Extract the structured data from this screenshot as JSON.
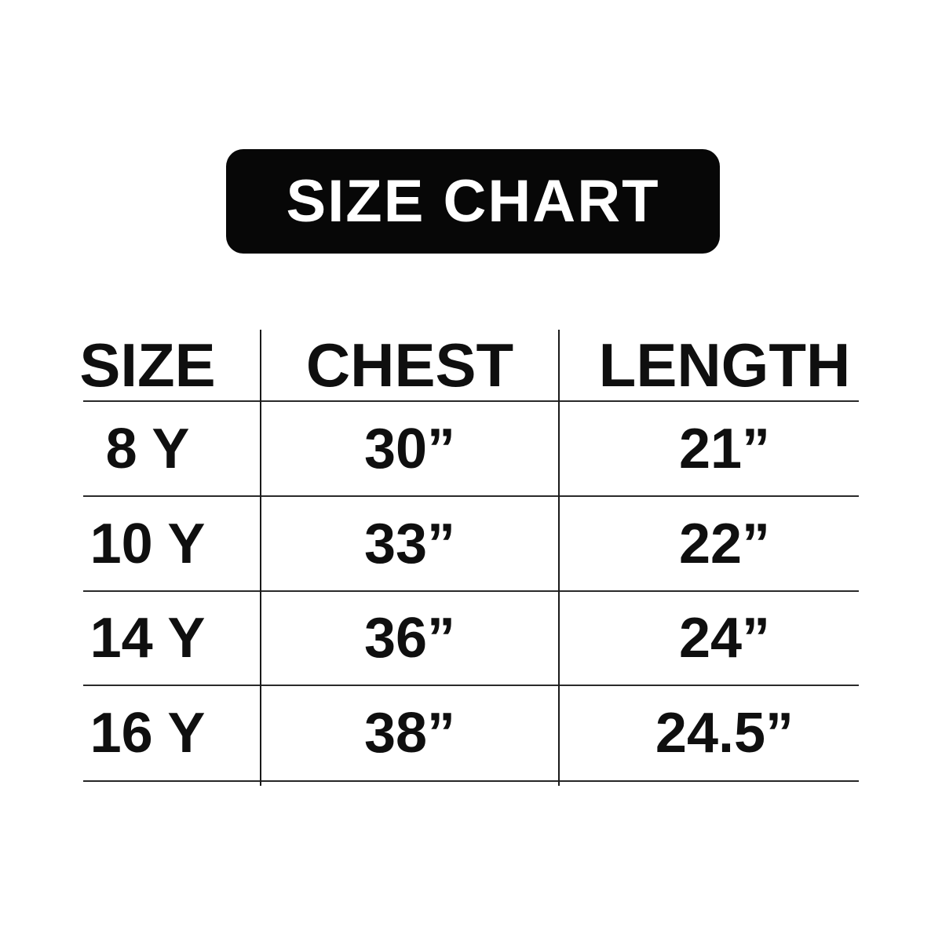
{
  "title": "SIZE CHART",
  "chart_data": {
    "type": "table",
    "title": "SIZE CHART",
    "columns": [
      "SIZE",
      "CHEST",
      "LENGTH"
    ],
    "rows": [
      [
        "8 Y",
        "30”",
        "21”"
      ],
      [
        "10 Y",
        "33”",
        "22”"
      ],
      [
        "14 Y",
        "36”",
        "24”"
      ],
      [
        "16 Y",
        "38”",
        "24.5”"
      ]
    ]
  },
  "colors": {
    "background": "#ffffff",
    "title_badge_bg": "#070707",
    "title_text": "#ffffff",
    "table_text": "#0f0f0f",
    "grid_line": "#2a2a2a"
  }
}
